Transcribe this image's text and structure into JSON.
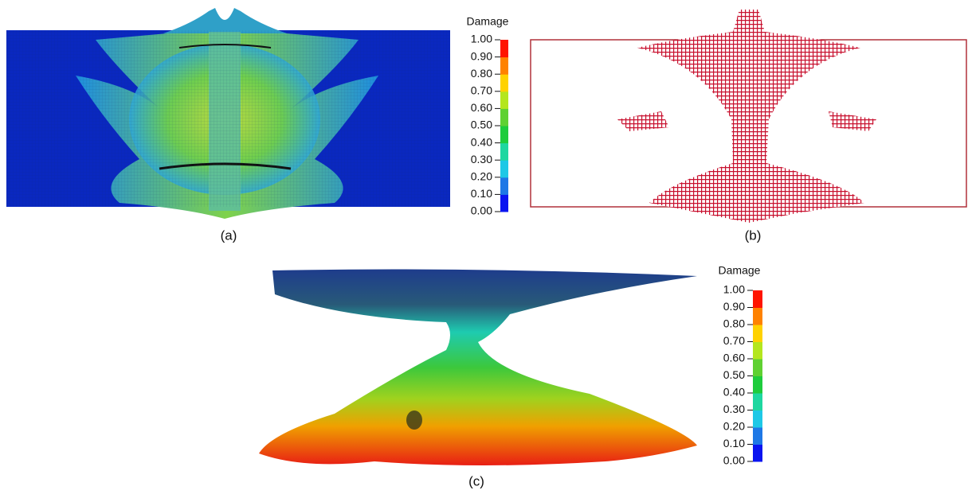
{
  "panels": [
    {
      "label": "(a)"
    },
    {
      "label": "(b)"
    },
    {
      "label": "(c)"
    }
  ],
  "colorbars": [
    {
      "title": "Damage",
      "ticks": [
        {
          "value": 0,
          "label": "0.00"
        },
        {
          "value": 0.1,
          "label": "0.10"
        },
        {
          "value": 0.2,
          "label": "0.20"
        },
        {
          "value": 0.3,
          "label": "0.30"
        },
        {
          "value": 0.4,
          "label": "0.40"
        },
        {
          "value": 0.5,
          "label": "0.50"
        },
        {
          "value": 0.6,
          "label": "0.60"
        },
        {
          "value": 0.7,
          "label": "0.70"
        },
        {
          "value": 0.8,
          "label": "0.80"
        },
        {
          "value": 0.9,
          "label": "0.90"
        },
        {
          "value": 1,
          "label": "1.00"
        }
      ],
      "colors": [
        "#0a14f0",
        "#1e78e6",
        "#1ec8e6",
        "#1ed7a0",
        "#1ecc3c",
        "#5fd132",
        "#b4e61e",
        "#ffd200",
        "#ff8200",
        "#ff1400"
      ]
    },
    {
      "title": "Damage",
      "ticks": [
        {
          "value": 0,
          "label": "0.00"
        },
        {
          "value": 0.1,
          "label": "0.10"
        },
        {
          "value": 0.2,
          "label": "0.20"
        },
        {
          "value": 0.3,
          "label": "0.30"
        },
        {
          "value": 0.4,
          "label": "0.40"
        },
        {
          "value": 0.5,
          "label": "0.50"
        },
        {
          "value": 0.6,
          "label": "0.60"
        },
        {
          "value": 0.7,
          "label": "0.70"
        },
        {
          "value": 0.8,
          "label": "0.80"
        },
        {
          "value": 0.9,
          "label": "0.90"
        },
        {
          "value": 1,
          "label": "1.00"
        }
      ],
      "colors": [
        "#0a14f0",
        "#1e78e6",
        "#1ec8e6",
        "#1ed7a0",
        "#1ecc3c",
        "#5fd132",
        "#b4e61e",
        "#ffd200",
        "#ff8200",
        "#ff1400"
      ]
    }
  ]
}
